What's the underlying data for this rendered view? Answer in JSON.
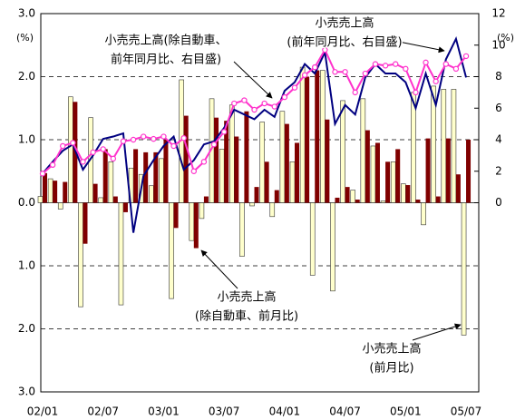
{
  "chart_data": {
    "type": "bar_line",
    "y_unit": "(%)",
    "y2_unit": "(%)",
    "categories": [
      "02/01",
      null,
      null,
      null,
      null,
      null,
      "02/07",
      null,
      null,
      null,
      null,
      null,
      "03/01",
      null,
      null,
      null,
      null,
      null,
      "03/07",
      null,
      null,
      null,
      null,
      null,
      "04/01",
      null,
      null,
      null,
      null,
      null,
      "04/07",
      null,
      null,
      null,
      null,
      null,
      "05/01",
      null,
      null,
      null,
      null,
      null,
      "05/07"
    ],
    "ylim": [
      -3,
      3
    ],
    "yticks": [
      {
        "value": 3,
        "label": "3.0"
      },
      {
        "value": 2,
        "label": "2.0"
      },
      {
        "value": 1,
        "label": "1.0"
      },
      {
        "value": 0,
        "label": "0.0"
      },
      {
        "value": -1,
        "label": "1.0"
      },
      {
        "value": -2,
        "label": "2.0"
      },
      {
        "value": -3,
        "label": "3.0"
      }
    ],
    "y2lim": [
      -12,
      12
    ],
    "y2ticks": [
      0,
      2,
      4,
      6,
      8,
      10,
      12
    ],
    "grid": true,
    "series": [
      {
        "kind": "bar",
        "color": "#ffffcc",
        "values": [
          0.1,
          0.38,
          -0.1,
          1.68,
          -1.65,
          1.35,
          0.08,
          0.65,
          -1.62,
          0.55,
          0.45,
          0.27,
          0.7,
          -1.52,
          1.95,
          -0.6,
          -0.25,
          1.65,
          0.85,
          1.55,
          -0.85,
          -0.05,
          1.28,
          -0.22,
          1.45,
          0.65,
          2.15,
          -1.15,
          2.1,
          -1.4,
          1.62,
          0.2,
          1.65,
          0.9,
          0.03,
          0.65,
          0.3,
          1.75,
          -0.35,
          1.85,
          1.8,
          1.8,
          -2.1
        ]
      },
      {
        "kind": "bar",
        "color": "#800000",
        "values": [
          0.47,
          0.35,
          0.33,
          1.6,
          -0.65,
          0.3,
          0.85,
          0.1,
          -0.15,
          0.85,
          0.8,
          0.8,
          1.0,
          -0.4,
          1.38,
          -0.72,
          0.1,
          1.35,
          1.3,
          1.05,
          1.45,
          0.25,
          0.65,
          0.2,
          1.25,
          0.95,
          2.0,
          2.1,
          1.32,
          0.08,
          0.25,
          0.05,
          1.15,
          0.95,
          0.65,
          0.85,
          0.28,
          0.05,
          1.02,
          0.1,
          1.02,
          0.45,
          1.0
        ]
      },
      {
        "kind": "line",
        "axis": "y2",
        "color": "#000080",
        "values": [
          1.85,
          2.6,
          3.3,
          3.7,
          2.1,
          3.0,
          4.05,
          4.2,
          4.4,
          -1.9,
          1.7,
          2.7,
          3.6,
          4.2,
          2.1,
          2.7,
          3.7,
          3.9,
          4.75,
          5.9,
          5.6,
          5.3,
          5.9,
          5.45,
          7.1,
          7.65,
          8.8,
          8.2,
          9.55,
          5.0,
          6.2,
          5.6,
          7.95,
          8.8,
          8.2,
          8.2,
          7.65,
          6.0,
          8.2,
          6.2,
          9.1,
          10.4,
          7.95
        ]
      },
      {
        "kind": "line",
        "axis": "y2",
        "markers": true,
        "color": "#ff33cc",
        "values": [
          1.85,
          2.4,
          3.6,
          3.8,
          2.6,
          3.2,
          3.4,
          2.8,
          3.9,
          4.0,
          4.2,
          4.05,
          4.2,
          3.6,
          4.1,
          2.0,
          2.6,
          3.7,
          4.5,
          6.3,
          6.5,
          5.9,
          6.3,
          6.1,
          6.7,
          7.3,
          8.1,
          8.6,
          9.7,
          8.3,
          8.3,
          7.0,
          8.2,
          8.8,
          8.7,
          8.8,
          8.5,
          7.0,
          8.9,
          7.7,
          8.8,
          8.5,
          9.3
        ]
      }
    ],
    "annotations": [
      {
        "lines": [
          "小売売上高(除自動車、",
          "前年同月比、右目盛)"
        ]
      },
      {
        "lines": [
          "小売売上高",
          "(前年同月比、右目盛)"
        ]
      },
      {
        "lines": [
          "小売売上高",
          "(除自動車、前月比)"
        ]
      },
      {
        "lines": [
          "小売売上高",
          "(前月比)"
        ]
      }
    ]
  }
}
